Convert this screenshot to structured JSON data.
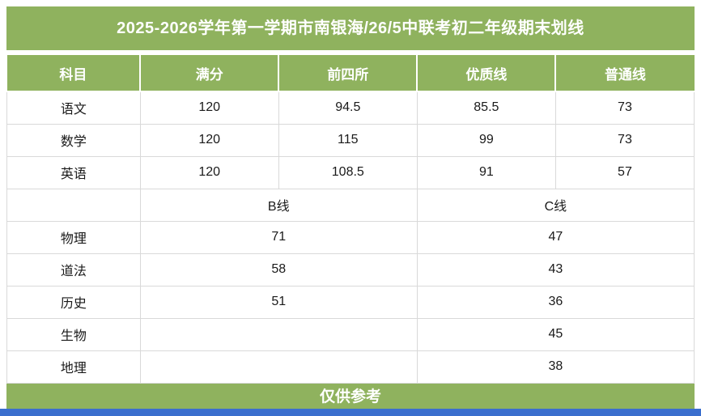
{
  "page": {
    "title": "2025-2026学年第一学期市南银海/26/5中联考初二年级期末划线",
    "footer": "仅供参考",
    "colors": {
      "accent_green": "#8fb25e",
      "bottom_strip_blue": "#3b6fce",
      "body_border": "#d9d9d9"
    }
  },
  "table": {
    "headers": [
      "科目",
      "满分",
      "前四所",
      "优质线",
      "普通线"
    ],
    "rows_top": [
      {
        "subject": "语文",
        "full": "120",
        "top4": "94.5",
        "quality": "85.5",
        "normal": "73"
      },
      {
        "subject": "数学",
        "full": "120",
        "top4": "115",
        "quality": "99",
        "normal": "73"
      },
      {
        "subject": "英语",
        "full": "120",
        "top4": "108.5",
        "quality": "91",
        "normal": "57"
      }
    ],
    "mid_header": {
      "subject": "",
      "b_line": "B线",
      "c_line": "C线"
    },
    "rows_bottom": [
      {
        "subject": "物理",
        "b": "71",
        "c": "47"
      },
      {
        "subject": "道法",
        "b": "58",
        "c": "43"
      },
      {
        "subject": "历史",
        "b": "51",
        "c": "36"
      },
      {
        "subject": "生物",
        "b": "",
        "c": "45"
      },
      {
        "subject": "地理",
        "b": "",
        "c": "38"
      }
    ]
  }
}
